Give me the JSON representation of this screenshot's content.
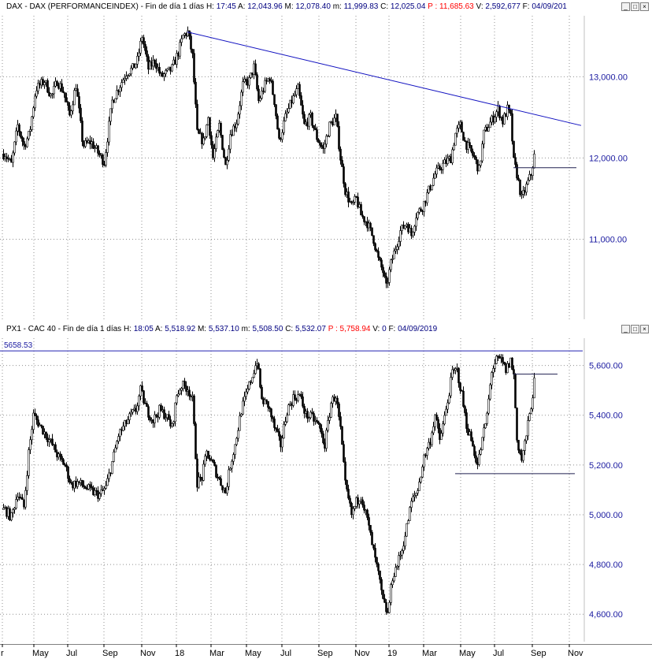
{
  "top_header": {
    "prefix": "DAX - DAX (PERFORMANCEINDEX) - Fin de día 1 días",
    "h_label": "H:",
    "h": "17:45",
    "a_label": "A:",
    "a": "12,043.96",
    "m_label": "M:",
    "m": "12,078.40",
    "mn_label": "m:",
    "mn": "11,999.83",
    "c_label": "C:",
    "c": "12,025.04",
    "p_label": "P :",
    "p": "11,685.63",
    "vol_label": "V:",
    "vol": "2,592,677",
    "f_label": "F:",
    "f": "04/09/201"
  },
  "bottom_header": {
    "prefix": "PX1 - CAC 40 - Fin de día 1 días",
    "h_label": "H:",
    "h": "18:05",
    "a_label": "A:",
    "a": "5,518.92",
    "m_label": "M:",
    "m": "5,537.10",
    "mn_label": "m:",
    "mn": "5,508.50",
    "c_label": "C:",
    "c": "5,532.07",
    "p_label": "P :",
    "p": "5,758.94",
    "vol_label": "V:",
    "vol": "0",
    "f_label": "F:",
    "f": "04/09/2019"
  },
  "window_buttons": {
    "min": "_",
    "max": "□",
    "close": "×"
  },
  "x_axis": {
    "labels": [
      "r",
      "May",
      "Jul",
      "Sep",
      "Nov",
      "18",
      "Mar",
      "May",
      "Jul",
      "Sep",
      "Nov",
      "19",
      "Mar",
      "May",
      "Jul",
      "Sep",
      "Nov"
    ],
    "pos": [
      3,
      43,
      86,
      132,
      180,
      224,
      268,
      313,
      358,
      405,
      452,
      494,
      538,
      585,
      628,
      676,
      723
    ]
  },
  "colors": {
    "candle": "#000000",
    "trendline": "#1010c0",
    "grid": "#909090",
    "axis_text": "#1a1aa0",
    "highlight": "#ff0000"
  },
  "chart_data": [
    {
      "type": "candlestick",
      "title": "DAX - DAX (PERFORMANCEINDEX)",
      "ylim": [
        10200,
        13750
      ],
      "y_ticks": [
        11000,
        12000,
        13000
      ],
      "y_tick_labels": [
        "11,000.00",
        "12,000.00",
        "13,000.00"
      ],
      "grid": true,
      "anchors": [
        [
          6,
          12050
        ],
        [
          14,
          11920
        ],
        [
          22,
          12400
        ],
        [
          30,
          12150
        ],
        [
          37,
          12300
        ],
        [
          45,
          12850
        ],
        [
          56,
          12950
        ],
        [
          65,
          12750
        ],
        [
          72,
          12950
        ],
        [
          80,
          12820
        ],
        [
          88,
          12520
        ],
        [
          96,
          12900
        ],
        [
          105,
          12150
        ],
        [
          115,
          12200
        ],
        [
          125,
          12050
        ],
        [
          132,
          11950
        ],
        [
          142,
          12700
        ],
        [
          152,
          12900
        ],
        [
          160,
          13050
        ],
        [
          168,
          13100
        ],
        [
          174,
          13200
        ],
        [
          180,
          13500
        ],
        [
          188,
          13100
        ],
        [
          196,
          13200
        ],
        [
          204,
          13000
        ],
        [
          212,
          13050
        ],
        [
          218,
          13100
        ],
        [
          226,
          13300
        ],
        [
          232,
          13500
        ],
        [
          238,
          13550
        ],
        [
          244,
          13250
        ],
        [
          250,
          12300
        ],
        [
          258,
          12200
        ],
        [
          264,
          12500
        ],
        [
          270,
          12000
        ],
        [
          278,
          12400
        ],
        [
          286,
          11900
        ],
        [
          292,
          12300
        ],
        [
          300,
          12450
        ],
        [
          308,
          12900
        ],
        [
          316,
          12950
        ],
        [
          322,
          13120
        ],
        [
          328,
          12700
        ],
        [
          336,
          12900
        ],
        [
          342,
          13000
        ],
        [
          348,
          12700
        ],
        [
          354,
          12200
        ],
        [
          362,
          12500
        ],
        [
          370,
          12700
        ],
        [
          378,
          12850
        ],
        [
          386,
          12400
        ],
        [
          394,
          12500
        ],
        [
          402,
          12250
        ],
        [
          410,
          12100
        ],
        [
          418,
          12400
        ],
        [
          426,
          12500
        ],
        [
          432,
          12000
        ],
        [
          438,
          11600
        ],
        [
          446,
          11400
        ],
        [
          452,
          11500
        ],
        [
          458,
          11300
        ],
        [
          466,
          11200
        ],
        [
          474,
          11000
        ],
        [
          480,
          10750
        ],
        [
          486,
          10600
        ],
        [
          490,
          10400
        ],
        [
          496,
          10700
        ],
        [
          502,
          10900
        ],
        [
          508,
          11100
        ],
        [
          516,
          11200
        ],
        [
          522,
          11050
        ],
        [
          528,
          11300
        ],
        [
          536,
          11400
        ],
        [
          544,
          11600
        ],
        [
          552,
          11800
        ],
        [
          560,
          11900
        ],
        [
          566,
          11950
        ],
        [
          572,
          12000
        ],
        [
          578,
          12300
        ],
        [
          584,
          12400
        ],
        [
          590,
          12200
        ],
        [
          596,
          12100
        ],
        [
          602,
          12000
        ],
        [
          608,
          11850
        ],
        [
          614,
          12300
        ],
        [
          620,
          12400
        ],
        [
          626,
          12500
        ],
        [
          632,
          12600
        ],
        [
          638,
          12450
        ],
        [
          644,
          12600
        ],
        [
          648,
          12500
        ],
        [
          652,
          11950
        ],
        [
          656,
          11800
        ],
        [
          662,
          11500
        ],
        [
          668,
          11650
        ],
        [
          674,
          11800
        ],
        [
          678,
          12025
        ]
      ],
      "annotations": [
        {
          "type": "trendline",
          "from": [
            238,
            13550
          ],
          "to": [
            738,
            12400
          ]
        },
        {
          "type": "hline",
          "from": [
            652,
            11880
          ],
          "to": [
            732,
            11880
          ]
        }
      ]
    },
    {
      "type": "candlestick",
      "title": "PX1 - CAC 40",
      "ylim": [
        4550,
        5700
      ],
      "y_ticks": [
        4600,
        4800,
        5000,
        5200,
        5400,
        5600
      ],
      "y_tick_labels": [
        "4,600.00",
        "4,800.00",
        "5,000.00",
        "5,200.00",
        "5,400.00",
        "5,600.00"
      ],
      "grid": true,
      "anchors": [
        [
          6,
          5020
        ],
        [
          14,
          4990
        ],
        [
          22,
          5090
        ],
        [
          30,
          5030
        ],
        [
          36,
          5250
        ],
        [
          42,
          5400
        ],
        [
          50,
          5360
        ],
        [
          58,
          5320
        ],
        [
          66,
          5280
        ],
        [
          74,
          5230
        ],
        [
          82,
          5200
        ],
        [
          90,
          5120
        ],
        [
          98,
          5130
        ],
        [
          108,
          5110
        ],
        [
          118,
          5090
        ],
        [
          126,
          5080
        ],
        [
          134,
          5110
        ],
        [
          142,
          5210
        ],
        [
          150,
          5320
        ],
        [
          158,
          5360
        ],
        [
          166,
          5400
        ],
        [
          172,
          5420
        ],
        [
          178,
          5500
        ],
        [
          186,
          5420
        ],
        [
          194,
          5380
        ],
        [
          202,
          5420
        ],
        [
          210,
          5400
        ],
        [
          218,
          5350
        ],
        [
          224,
          5480
        ],
        [
          230,
          5520
        ],
        [
          238,
          5510
        ],
        [
          244,
          5460
        ],
        [
          250,
          5130
        ],
        [
          256,
          5150
        ],
        [
          262,
          5250
        ],
        [
          270,
          5200
        ],
        [
          278,
          5140
        ],
        [
          286,
          5090
        ],
        [
          292,
          5200
        ],
        [
          298,
          5280
        ],
        [
          306,
          5420
        ],
        [
          314,
          5500
        ],
        [
          320,
          5560
        ],
        [
          326,
          5620
        ],
        [
          332,
          5460
        ],
        [
          340,
          5440
        ],
        [
          348,
          5350
        ],
        [
          356,
          5280
        ],
        [
          364,
          5420
        ],
        [
          372,
          5470
        ],
        [
          380,
          5480
        ],
        [
          388,
          5400
        ],
        [
          396,
          5390
        ],
        [
          404,
          5360
        ],
        [
          412,
          5280
        ],
        [
          420,
          5450
        ],
        [
          426,
          5480
        ],
        [
          432,
          5340
        ],
        [
          438,
          5120
        ],
        [
          446,
          5000
        ],
        [
          452,
          5050
        ],
        [
          458,
          5080
        ],
        [
          466,
          4980
        ],
        [
          474,
          4850
        ],
        [
          480,
          4760
        ],
        [
          486,
          4650
        ],
        [
          492,
          4600
        ],
        [
          498,
          4750
        ],
        [
          504,
          4800
        ],
        [
          510,
          4860
        ],
        [
          516,
          4950
        ],
        [
          522,
          5050
        ],
        [
          530,
          5100
        ],
        [
          538,
          5230
        ],
        [
          546,
          5300
        ],
        [
          552,
          5400
        ],
        [
          558,
          5300
        ],
        [
          566,
          5420
        ],
        [
          574,
          5570
        ],
        [
          580,
          5580
        ],
        [
          586,
          5480
        ],
        [
          592,
          5360
        ],
        [
          598,
          5300
        ],
        [
          606,
          5200
        ],
        [
          612,
          5300
        ],
        [
          618,
          5400
        ],
        [
          624,
          5580
        ],
        [
          630,
          5620
        ],
        [
          636,
          5620
        ],
        [
          642,
          5580
        ],
        [
          648,
          5620
        ],
        [
          652,
          5560
        ],
        [
          656,
          5300
        ],
        [
          662,
          5220
        ],
        [
          668,
          5320
        ],
        [
          674,
          5440
        ],
        [
          678,
          5532
        ]
      ],
      "annotations": [
        {
          "type": "hline",
          "from": [
            0,
            5658.53
          ],
          "to": [
            740,
            5658.53
          ],
          "label": "5658.53"
        },
        {
          "type": "hline",
          "from": [
            652,
            5565
          ],
          "to": [
            708,
            5565
          ]
        },
        {
          "type": "hline",
          "from": [
            578,
            5165
          ],
          "to": [
            730,
            5165
          ]
        }
      ]
    }
  ]
}
